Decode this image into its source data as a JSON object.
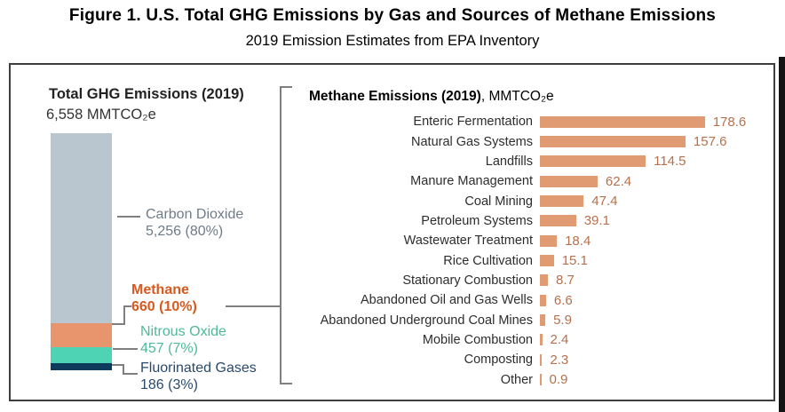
{
  "header": {
    "title": "Figure 1. U.S. Total GHG Emissions by Gas and Sources of Methane Emissions",
    "subtitle": "2019 Emission Estimates from EPA Inventory"
  },
  "left_panel": {
    "title": "Total GHG Emissions (2019)",
    "total_label": "6,558 MMTCO₂e"
  },
  "right_panel": {
    "title_bold": "Methane Emissions (2019)",
    "title_suffix": ", MMTCO₂e"
  },
  "chart_data": [
    {
      "type": "bar",
      "orientation": "vertical",
      "stacked": true,
      "title": "Total GHG Emissions (2019)",
      "total_label": "6,558 MMTCO₂e",
      "total": 6558,
      "categories": [
        "Carbon Dioxide",
        "Methane",
        "Nitrous Oxide",
        "Fluorinated Gases"
      ],
      "values": [
        5256,
        660,
        457,
        186
      ],
      "percent_labels": [
        "80%",
        "10%",
        "7%",
        "3%"
      ],
      "value_labels": [
        "5,256 (80%)",
        "660 (10%)",
        "457 (7%)",
        "186 (3%)"
      ],
      "colors": [
        "#B9C5CF",
        "#E8946C",
        "#4FD3B5",
        "#0D3A5C"
      ],
      "label_colors": [
        "#6F7C88",
        "#D65A1F",
        "#4FB99B",
        "#2A4A6E"
      ],
      "grid": false,
      "legend": "none"
    },
    {
      "type": "bar",
      "orientation": "horizontal",
      "title": "Methane Emissions (2019), MMTCO₂e",
      "categories": [
        "Enteric Fermentation",
        "Natural Gas Systems",
        "Landfills",
        "Manure Management",
        "Coal Mining",
        "Petroleum Systems",
        "Wastewater Treatment",
        "Rice Cultivation",
        "Stationary Combustion",
        "Abandoned Oil and Gas Wells",
        "Abandoned Underground Coal Mines",
        "Mobile Combustion",
        "Composting",
        "Other"
      ],
      "values": [
        178.6,
        157.6,
        114.5,
        62.4,
        47.4,
        39.1,
        18.4,
        15.1,
        8.7,
        6.6,
        5.9,
        2.4,
        2.3,
        0.9
      ],
      "xlim": [
        0,
        190
      ],
      "bar_color": "#E09B73",
      "value_label_color": "#B5714E",
      "data_labels": true,
      "grid": false,
      "legend": "none",
      "xlabel": "",
      "ylabel": ""
    }
  ]
}
